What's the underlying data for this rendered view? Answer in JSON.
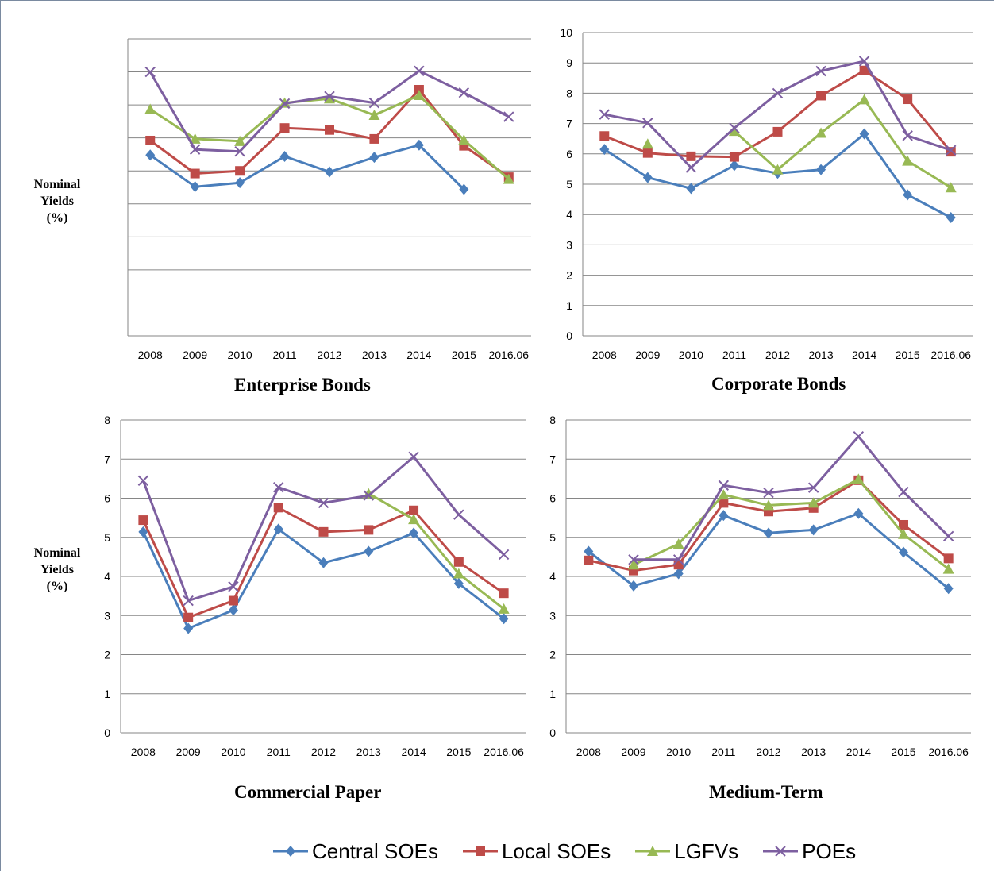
{
  "colors": {
    "Central SOEs": "#4a7ebb",
    "Local SOEs": "#be4b48",
    "LGFVs": "#98b954",
    "POEs": "#7d5fa0"
  },
  "y_axis_label_lines": [
    "Nominal",
    "Yields",
    "(%)"
  ],
  "legend": [
    "Central SOEs",
    "Local SOEs",
    "LGFVs",
    "POEs"
  ],
  "chart_data": [
    {
      "type": "line",
      "title": "Enterprise Bonds",
      "ylabel": "Nominal Yields (%)",
      "categories": [
        "2008",
        "2009",
        "2010",
        "2011",
        "2012",
        "2013",
        "2014",
        "2015",
        "2016.06"
      ],
      "ylim": [
        0,
        9
      ],
      "yticks": [
        0,
        1,
        2,
        3,
        4,
        5,
        6,
        7,
        8,
        9
      ],
      "grid": true,
      "series": [
        {
          "name": "Central SOEs",
          "values": [
            5.48,
            4.52,
            4.64,
            5.44,
            4.97,
            5.41,
            5.78,
            4.44,
            null
          ]
        },
        {
          "name": "Local SOEs",
          "values": [
            5.92,
            4.92,
            5.0,
            6.3,
            6.24,
            5.97,
            7.46,
            5.76,
            4.81
          ]
        },
        {
          "name": "LGFVs",
          "values": [
            6.87,
            5.97,
            5.9,
            7.06,
            7.19,
            6.69,
            7.29,
            5.94,
            4.75
          ]
        },
        {
          "name": "POEs",
          "values": [
            8.0,
            5.65,
            5.59,
            7.04,
            7.26,
            7.06,
            8.03,
            7.37,
            6.64
          ]
        }
      ]
    },
    {
      "type": "line",
      "title": "Corporate Bonds",
      "ylabel": "",
      "categories": [
        "2008",
        "2009",
        "2010",
        "2011",
        "2012",
        "2013",
        "2014",
        "2015",
        "2016.06"
      ],
      "ylim": [
        0,
        10
      ],
      "yticks": [
        0,
        1,
        2,
        3,
        4,
        5,
        6,
        7,
        8,
        9,
        10
      ],
      "grid": true,
      "series": [
        {
          "name": "Central SOEs",
          "values": [
            6.15,
            5.22,
            4.86,
            5.62,
            5.36,
            5.48,
            6.66,
            4.65,
            3.9
          ]
        },
        {
          "name": "Local SOEs",
          "values": [
            6.59,
            6.03,
            5.92,
            5.9,
            6.73,
            7.92,
            8.75,
            7.8,
            6.07
          ]
        },
        {
          "name": "LGFVs",
          "values": [
            null,
            6.33,
            null,
            6.75,
            5.48,
            6.69,
            7.79,
            5.77,
            4.89
          ]
        },
        {
          "name": "POEs",
          "values": [
            7.3,
            7.02,
            5.55,
            6.85,
            8.0,
            8.73,
            9.06,
            6.6,
            6.12
          ]
        }
      ]
    },
    {
      "type": "line",
      "title": "Commercial Paper",
      "ylabel": "Nominal Yields (%)",
      "categories": [
        "2008",
        "2009",
        "2010",
        "2011",
        "2012",
        "2013",
        "2014",
        "2015",
        "2016.06"
      ],
      "ylim": [
        0,
        8
      ],
      "yticks": [
        0,
        1,
        2,
        3,
        4,
        5,
        6,
        7,
        8
      ],
      "grid": true,
      "series": [
        {
          "name": "Central SOEs",
          "values": [
            5.14,
            2.67,
            3.14,
            5.21,
            4.35,
            4.64,
            5.11,
            3.82,
            2.92
          ]
        },
        {
          "name": "Local SOEs",
          "values": [
            5.44,
            2.95,
            3.38,
            5.76,
            5.14,
            5.19,
            5.69,
            4.37,
            3.57
          ]
        },
        {
          "name": "LGFVs",
          "values": [
            null,
            null,
            null,
            null,
            null,
            6.12,
            5.46,
            4.07,
            3.17
          ]
        },
        {
          "name": "POEs",
          "values": [
            6.45,
            3.38,
            3.74,
            6.28,
            5.88,
            6.07,
            7.06,
            5.58,
            4.56
          ]
        }
      ]
    },
    {
      "type": "line",
      "title": "Medium-Term",
      "ylabel": "",
      "categories": [
        "2008",
        "2009",
        "2010",
        "2011",
        "2012",
        "2013",
        "2014",
        "2015",
        "2016.06"
      ],
      "ylim": [
        0,
        8
      ],
      "yticks": [
        0,
        1,
        2,
        3,
        4,
        5,
        6,
        7,
        8
      ],
      "grid": true,
      "series": [
        {
          "name": "Central SOEs",
          "values": [
            4.64,
            3.76,
            4.07,
            5.56,
            5.11,
            5.19,
            5.61,
            4.62,
            3.69
          ]
        },
        {
          "name": "Local SOEs",
          "values": [
            4.41,
            4.15,
            4.3,
            5.88,
            5.66,
            5.75,
            6.46,
            5.32,
            4.46
          ]
        },
        {
          "name": "LGFVs",
          "values": [
            null,
            4.3,
            4.83,
            6.09,
            5.82,
            5.88,
            6.49,
            5.08,
            4.19
          ]
        },
        {
          "name": "POEs",
          "values": [
            null,
            4.43,
            4.43,
            6.33,
            6.14,
            6.27,
            7.58,
            6.16,
            5.03
          ]
        }
      ]
    }
  ]
}
